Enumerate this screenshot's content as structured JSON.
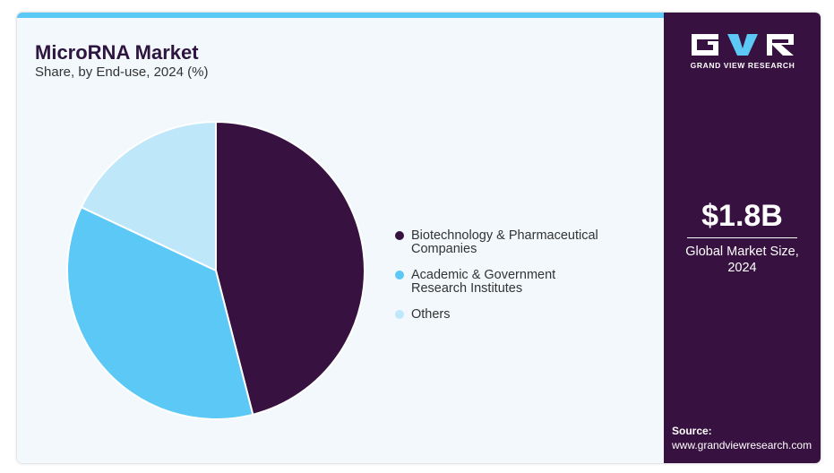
{
  "header": {
    "title": "MicroRNA Market",
    "subtitle": "Share, by End-use, 2024 (%)"
  },
  "chart_data": {
    "type": "pie",
    "title": "MicroRNA Market",
    "subtitle": "Share, by End-use, 2024 (%)",
    "categories": [
      "Biotechnology & Pharmaceutical Companies",
      "Academic & Government Research Institutes",
      "Others"
    ],
    "values": [
      46,
      36,
      18
    ],
    "colors": [
      "#37113f",
      "#5bc8f5",
      "#bfe7fa"
    ],
    "legend_position": "right"
  },
  "legend": {
    "items": [
      {
        "line1": "Biotechnology & Pharmaceutical",
        "line2": "Companies"
      },
      {
        "line1": "Academic & Government",
        "line2": "Research Institutes"
      },
      {
        "line1": "Others",
        "line2": ""
      }
    ]
  },
  "sidebar": {
    "brand": "GRAND VIEW RESEARCH",
    "stat_value": "$1.8B",
    "stat_label_line1": "Global Market Size,",
    "stat_label_line2": "2024",
    "source_label": "Source:",
    "source_url": "www.grandviewresearch.com"
  },
  "colors": {
    "accent": "#5bc8f5",
    "brand_dark": "#37113f",
    "background": "#f3f8fc"
  }
}
